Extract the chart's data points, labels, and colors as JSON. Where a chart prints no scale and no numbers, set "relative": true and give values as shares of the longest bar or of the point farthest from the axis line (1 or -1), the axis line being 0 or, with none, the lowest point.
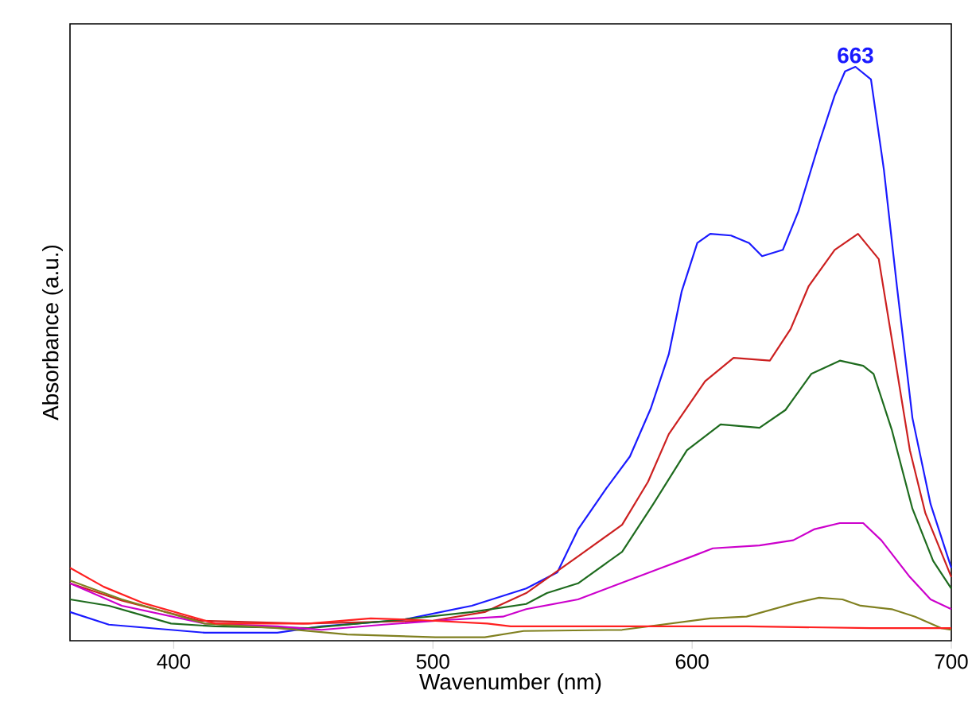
{
  "chart_data": {
    "type": "line",
    "relative": true,
    "xlabel": "Wavenumber (nm)",
    "ylabel": "Absorbance (a.u.)",
    "xlim": [
      360,
      700
    ],
    "xticks": [
      400,
      500,
      600,
      700
    ],
    "grid": false,
    "marker": "none",
    "line_style": "solid",
    "annotations": [
      {
        "text": "663",
        "x": 663,
        "y": 1
      }
    ],
    "series": [
      {
        "color": "#1a1aff",
        "x": [
          360,
          375,
          412,
          440,
          457,
          488,
          515,
          536,
          548,
          556,
          567,
          576,
          584,
          591,
          596,
          602,
          607,
          615,
          622,
          627,
          635,
          641,
          649,
          655,
          659,
          663,
          669,
          674,
          679,
          685,
          692,
          700
        ],
        "values": [
          0.05,
          0.028,
          0.014,
          0.014,
          0.025,
          0.036,
          0.061,
          0.091,
          0.119,
          0.194,
          0.266,
          0.321,
          0.404,
          0.499,
          0.609,
          0.693,
          0.709,
          0.706,
          0.693,
          0.67,
          0.681,
          0.748,
          0.867,
          0.95,
          0.992,
          1.0,
          0.978,
          0.82,
          0.618,
          0.388,
          0.238,
          0.127
        ]
      },
      {
        "color": "#cc2020",
        "x": [
          360,
          380,
          410,
          450,
          500,
          520,
          536,
          556,
          573,
          583,
          591,
          605,
          616,
          630,
          638,
          645,
          655,
          664,
          672,
          678,
          684,
          690,
          700
        ],
        "values": [
          0.1,
          0.07,
          0.035,
          0.03,
          0.035,
          0.05,
          0.083,
          0.147,
          0.202,
          0.277,
          0.36,
          0.452,
          0.493,
          0.488,
          0.543,
          0.618,
          0.681,
          0.709,
          0.665,
          0.499,
          0.332,
          0.222,
          0.111
        ]
      },
      {
        "color": "#1e6b1e",
        "x": [
          360,
          375,
          399,
          416,
          452,
          486,
          515,
          536,
          544,
          556,
          573,
          585,
          598,
          611,
          626,
          636,
          646,
          657,
          666,
          670,
          677,
          685,
          693,
          700
        ],
        "values": [
          0.072,
          0.061,
          0.03,
          0.025,
          0.022,
          0.036,
          0.05,
          0.064,
          0.083,
          0.1,
          0.155,
          0.238,
          0.332,
          0.377,
          0.371,
          0.402,
          0.465,
          0.488,
          0.479,
          0.465,
          0.368,
          0.23,
          0.139,
          0.091
        ]
      },
      {
        "color": "#cc00cc",
        "x": [
          360,
          380,
          412,
          440,
          457,
          481,
          505,
          527,
          536,
          556,
          587,
          600,
          608,
          626,
          639,
          647,
          657,
          666,
          673,
          684,
          692,
          700
        ],
        "values": [
          0.1,
          0.061,
          0.03,
          0.025,
          0.019,
          0.028,
          0.036,
          0.042,
          0.055,
          0.072,
          0.125,
          0.147,
          0.161,
          0.166,
          0.175,
          0.194,
          0.205,
          0.205,
          0.175,
          0.111,
          0.072,
          0.055
        ]
      },
      {
        "color": "#808020",
        "x": [
          360,
          380,
          412,
          440,
          467,
          501,
          520,
          535,
          573,
          607,
          621,
          640,
          649,
          658,
          665,
          677,
          686,
          696,
          700
        ],
        "values": [
          0.105,
          0.072,
          0.03,
          0.022,
          0.011,
          0.006,
          0.006,
          0.017,
          0.019,
          0.039,
          0.042,
          0.066,
          0.075,
          0.072,
          0.061,
          0.055,
          0.042,
          0.022,
          0.019
        ]
      },
      {
        "color": "#ff2020",
        "x": [
          360,
          373,
          388,
          416,
          452,
          476,
          495,
          521,
          530,
          572,
          621,
          669,
          700
        ],
        "values": [
          0.127,
          0.094,
          0.066,
          0.03,
          0.03,
          0.039,
          0.036,
          0.03,
          0.025,
          0.025,
          0.025,
          0.022,
          0.022
        ]
      }
    ]
  }
}
